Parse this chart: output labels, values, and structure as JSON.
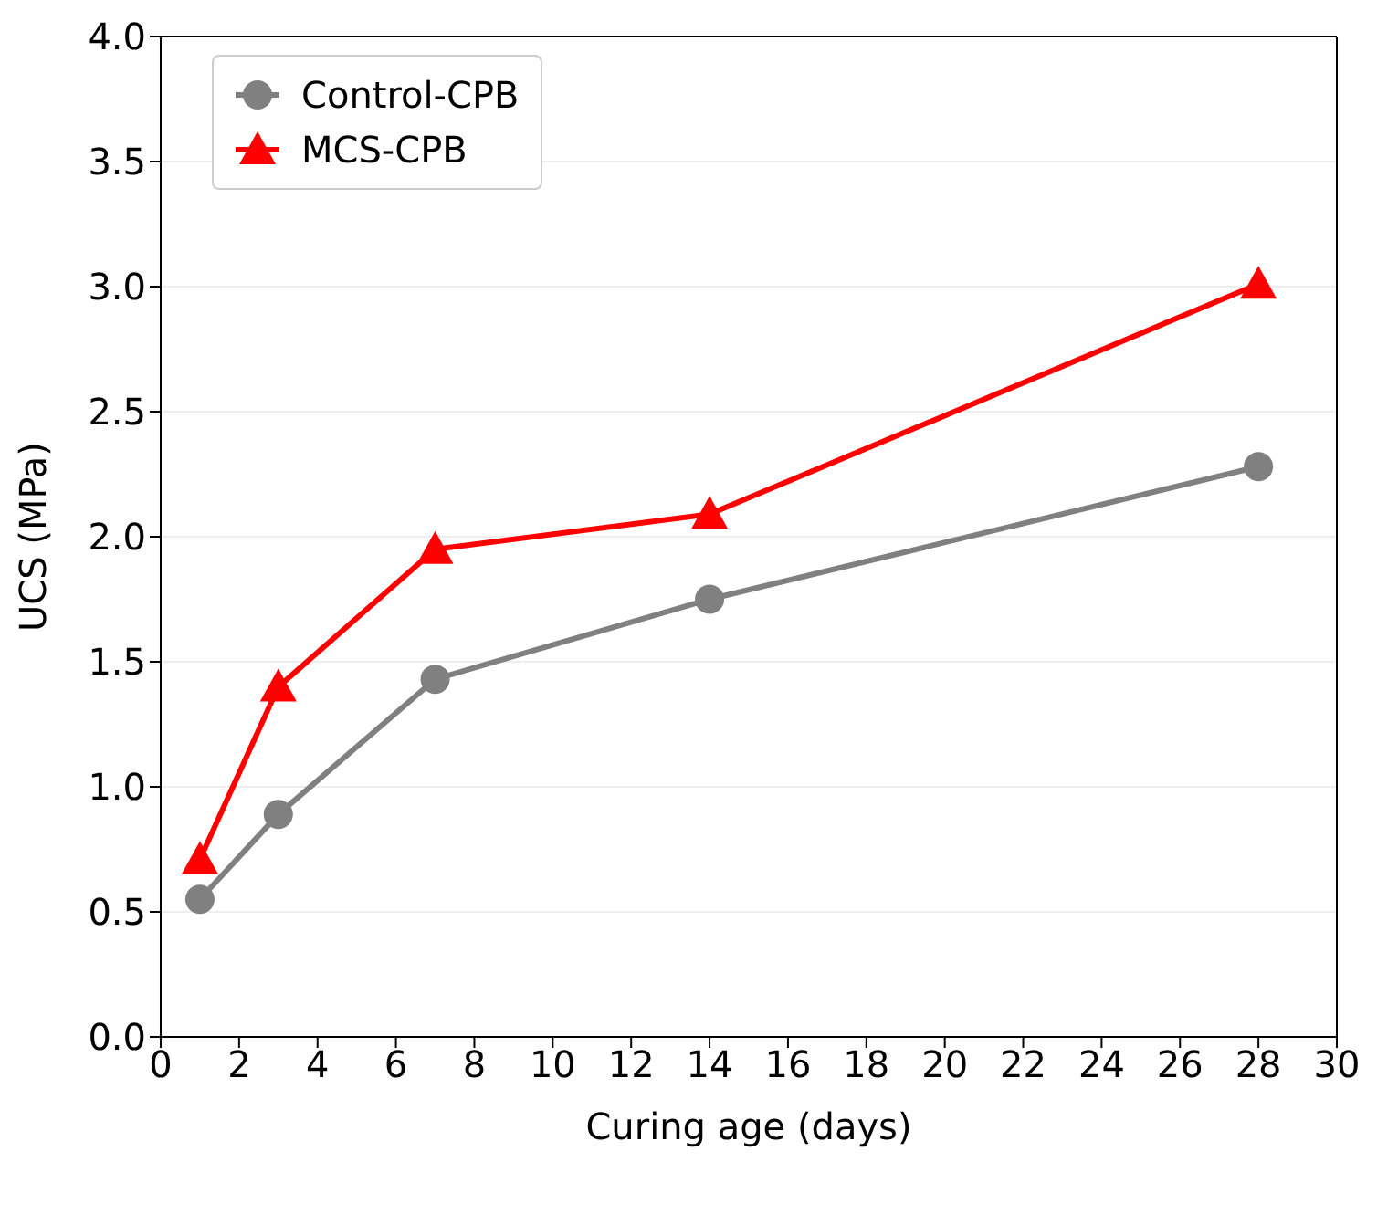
{
  "chart_data": {
    "type": "line",
    "xlabel": "Curing age (days)",
    "ylabel": "UCS (MPa)",
    "x": [
      1,
      3,
      7,
      14,
      28
    ],
    "series": [
      {
        "name": "Control-CPB",
        "color": "#808080",
        "marker": "circle",
        "values": [
          0.55,
          0.89,
          1.43,
          1.75,
          2.28
        ]
      },
      {
        "name": "MCS-CPB",
        "color": "#ff0000",
        "marker": "triangle",
        "values": [
          0.71,
          1.4,
          1.95,
          2.09,
          3.01
        ]
      }
    ],
    "xlim": [
      0,
      30
    ],
    "xticks": [
      0,
      2,
      4,
      6,
      8,
      10,
      12,
      14,
      16,
      18,
      20,
      22,
      24,
      26,
      28,
      30
    ],
    "ylim": [
      0,
      4
    ],
    "yticks": [
      {
        "value": 0,
        "label": "0.0"
      },
      {
        "value": 0.5,
        "label": "0.5"
      },
      {
        "value": 1,
        "label": "1.0"
      },
      {
        "value": 1.5,
        "label": "1.5"
      },
      {
        "value": 2,
        "label": "2.0"
      },
      {
        "value": 2.5,
        "label": "2.5"
      },
      {
        "value": 3,
        "label": "3.0"
      },
      {
        "value": 3.5,
        "label": "3.5"
      },
      {
        "value": 4,
        "label": "4.0"
      }
    ],
    "grid": "y",
    "legend": "top left",
    "line_style": "solid"
  }
}
